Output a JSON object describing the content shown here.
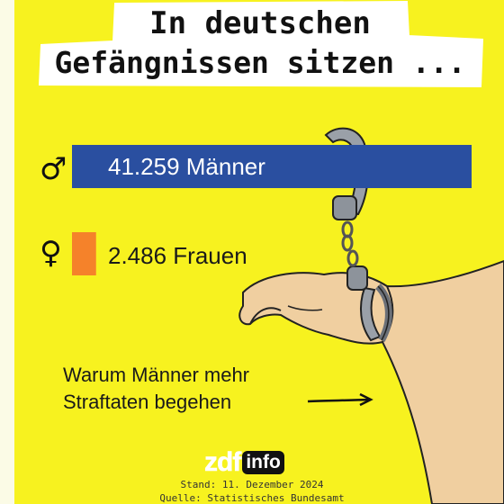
{
  "header": {
    "title_line1": "In deutschen",
    "title_line2": "Gefängnissen sitzen ..."
  },
  "chart_data": {
    "type": "bar",
    "orientation": "horizontal",
    "categories": [
      "Männer",
      "Frauen"
    ],
    "values": [
      41259,
      2486
    ],
    "labels": [
      "41.259 Männer",
      "2.486 Frauen"
    ],
    "symbols": [
      "♂",
      "♀"
    ],
    "colors": [
      "#2a4fa0",
      "#f5822a"
    ],
    "title": "In deutschen Gefängnissen sitzen ...",
    "grid": false,
    "legend": "none"
  },
  "teaser": {
    "line1": "Warum Männer mehr",
    "line2": "Straftaten begehen"
  },
  "brand": {
    "logo_zdf": "zdf",
    "logo_info": "info"
  },
  "footer": {
    "date": "Stand: 11. Dezember 2024",
    "source": "Quelle: Statistisches Bundesamt"
  },
  "colors": {
    "background": "#f7f21f",
    "accent_blue": "#2a4fa0",
    "accent_orange": "#f5822a"
  },
  "icons": [
    "male-symbol-icon",
    "female-symbol-icon",
    "handcuffs-illustration",
    "hand-illustration",
    "arrow-right-icon"
  ]
}
